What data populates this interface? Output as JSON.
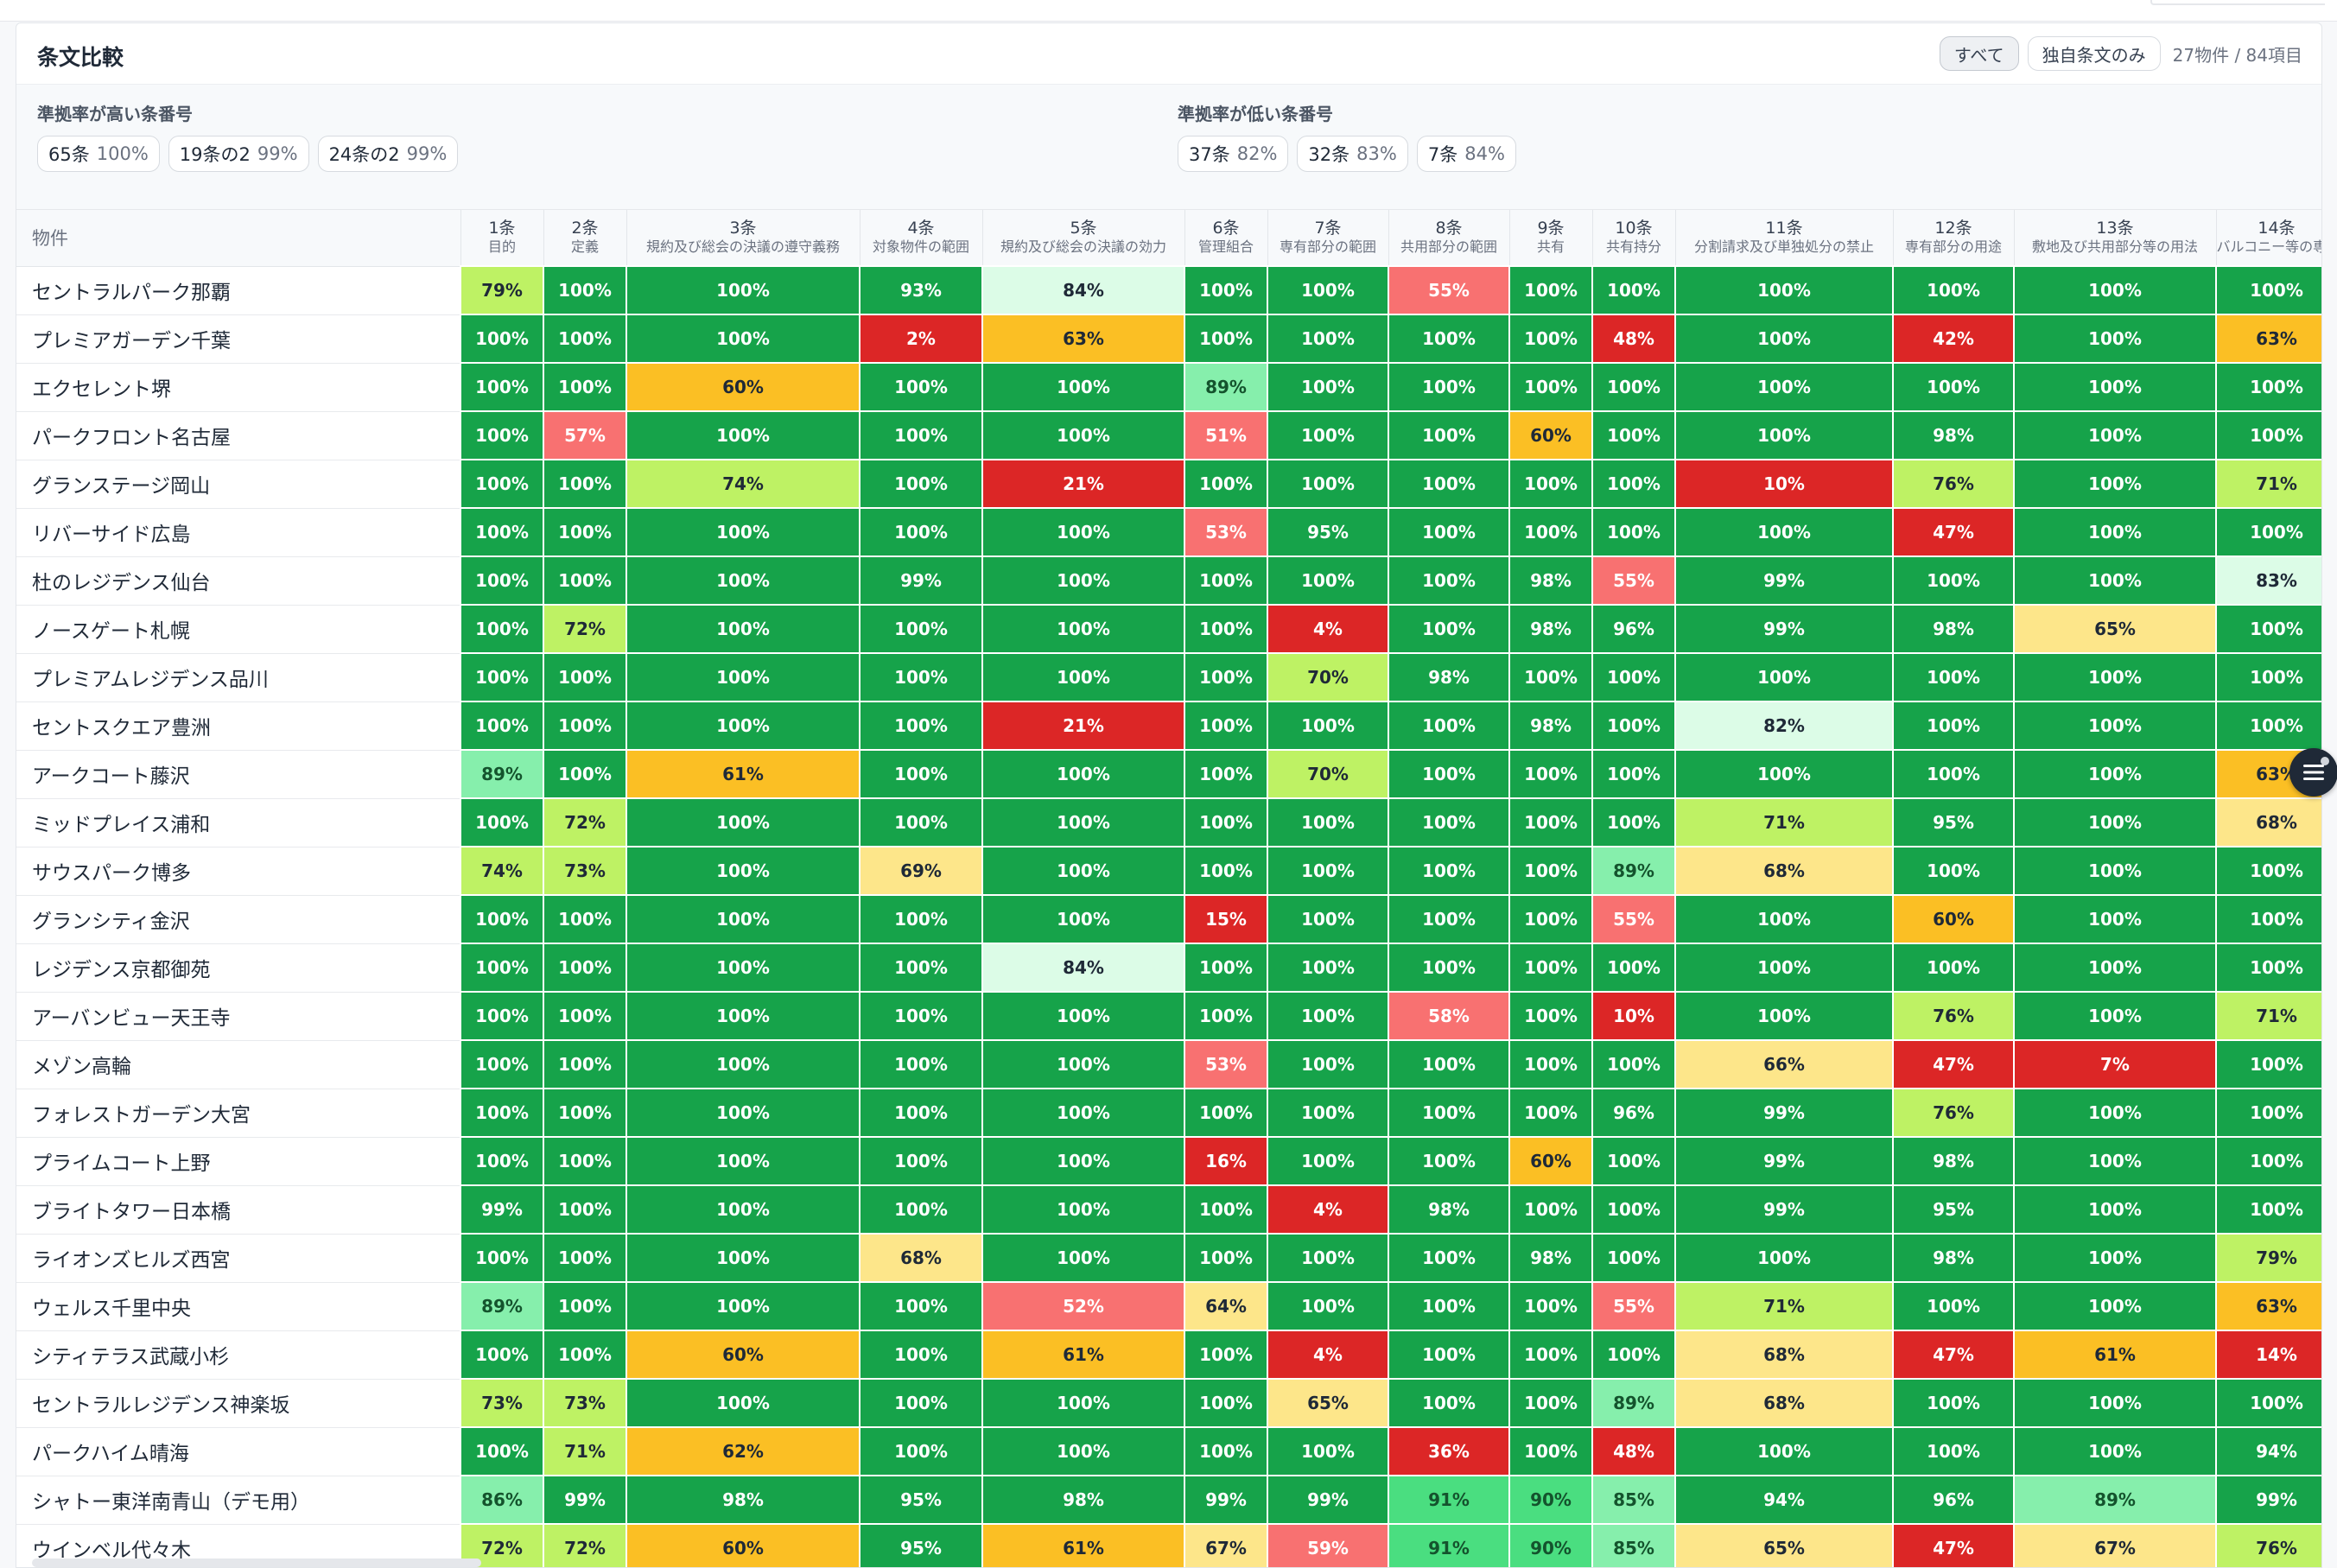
{
  "header": {
    "title": "条文比較",
    "filter_all": "すべて",
    "filter_unique": "独自条文のみ",
    "count": "27物件 / 84項目"
  },
  "summary": {
    "high_label": "準拠率が高い条番号",
    "high": [
      {
        "article": "65条",
        "pct": "100%"
      },
      {
        "article": "19条の2",
        "pct": "99%"
      },
      {
        "article": "24条の2",
        "pct": "99%"
      }
    ],
    "low_label": "準拠率が低い条番号",
    "low": [
      {
        "article": "37条",
        "pct": "82%"
      },
      {
        "article": "32条",
        "pct": "83%"
      },
      {
        "article": "7条",
        "pct": "84%"
      }
    ]
  },
  "table": {
    "property_header": "物件",
    "columns": [
      {
        "num": "1条",
        "title": "目的"
      },
      {
        "num": "2条",
        "title": "定義"
      },
      {
        "num": "3条",
        "title": "規約及び総会の決議の遵守義務"
      },
      {
        "num": "4条",
        "title": "対象物件の範囲"
      },
      {
        "num": "5条",
        "title": "規約及び総会の決議の効力"
      },
      {
        "num": "6条",
        "title": "管理組合"
      },
      {
        "num": "7条",
        "title": "専有部分の範囲"
      },
      {
        "num": "8条",
        "title": "共用部分の範囲"
      },
      {
        "num": "9条",
        "title": "共有"
      },
      {
        "num": "10条",
        "title": "共有持分"
      },
      {
        "num": "11条",
        "title": "分割請求及び単独処分の禁止"
      },
      {
        "num": "12条",
        "title": "専有部分の用途"
      },
      {
        "num": "13条",
        "title": "敷地及び共用部分等の用法"
      },
      {
        "num": "14条",
        "title": "バルコニー等の専用使用権"
      }
    ],
    "rows": [
      {
        "name": "セントラルパーク那覇",
        "values": [
          "79%",
          "100%",
          "100%",
          "93%",
          "84%",
          "100%",
          "100%",
          "55%",
          "100%",
          "100%",
          "100%",
          "100%",
          "100%",
          "100%"
        ]
      },
      {
        "name": "プレミアガーデン千葉",
        "values": [
          "100%",
          "100%",
          "100%",
          "2%",
          "63%",
          "100%",
          "100%",
          "100%",
          "100%",
          "48%",
          "100%",
          "42%",
          "100%",
          "63%"
        ]
      },
      {
        "name": "エクセレント堺",
        "values": [
          "100%",
          "100%",
          "60%",
          "100%",
          "100%",
          "89%",
          "100%",
          "100%",
          "100%",
          "100%",
          "100%",
          "100%",
          "100%",
          "100%"
        ]
      },
      {
        "name": "パークフロント名古屋",
        "values": [
          "100%",
          "57%",
          "100%",
          "100%",
          "100%",
          "51%",
          "100%",
          "100%",
          "60%",
          "100%",
          "100%",
          "98%",
          "100%",
          "100%"
        ]
      },
      {
        "name": "グランステージ岡山",
        "values": [
          "100%",
          "100%",
          "74%",
          "100%",
          "21%",
          "100%",
          "100%",
          "100%",
          "100%",
          "100%",
          "10%",
          "76%",
          "100%",
          "71%"
        ]
      },
      {
        "name": "リバーサイド広島",
        "values": [
          "100%",
          "100%",
          "100%",
          "100%",
          "100%",
          "53%",
          "95%",
          "100%",
          "100%",
          "100%",
          "100%",
          "47%",
          "100%",
          "100%"
        ]
      },
      {
        "name": "杜のレジデンス仙台",
        "values": [
          "100%",
          "100%",
          "100%",
          "99%",
          "100%",
          "100%",
          "100%",
          "100%",
          "98%",
          "55%",
          "99%",
          "100%",
          "100%",
          "83%"
        ]
      },
      {
        "name": "ノースゲート札幌",
        "values": [
          "100%",
          "72%",
          "100%",
          "100%",
          "100%",
          "100%",
          "4%",
          "100%",
          "98%",
          "96%",
          "99%",
          "98%",
          "65%",
          "100%"
        ]
      },
      {
        "name": "プレミアムレジデンス品川",
        "values": [
          "100%",
          "100%",
          "100%",
          "100%",
          "100%",
          "100%",
          "70%",
          "98%",
          "100%",
          "100%",
          "100%",
          "100%",
          "100%",
          "100%"
        ]
      },
      {
        "name": "セントスクエア豊洲",
        "values": [
          "100%",
          "100%",
          "100%",
          "100%",
          "21%",
          "100%",
          "100%",
          "100%",
          "98%",
          "100%",
          "82%",
          "100%",
          "100%",
          "100%"
        ]
      },
      {
        "name": "アークコート藤沢",
        "values": [
          "89%",
          "100%",
          "61%",
          "100%",
          "100%",
          "100%",
          "70%",
          "100%",
          "100%",
          "100%",
          "100%",
          "100%",
          "100%",
          "63%"
        ]
      },
      {
        "name": "ミッドプレイス浦和",
        "values": [
          "100%",
          "72%",
          "100%",
          "100%",
          "100%",
          "100%",
          "100%",
          "100%",
          "100%",
          "100%",
          "71%",
          "95%",
          "100%",
          "68%"
        ]
      },
      {
        "name": "サウスパーク博多",
        "values": [
          "74%",
          "73%",
          "100%",
          "69%",
          "100%",
          "100%",
          "100%",
          "100%",
          "100%",
          "89%",
          "68%",
          "100%",
          "100%",
          "100%"
        ]
      },
      {
        "name": "グランシティ金沢",
        "values": [
          "100%",
          "100%",
          "100%",
          "100%",
          "100%",
          "15%",
          "100%",
          "100%",
          "100%",
          "55%",
          "100%",
          "60%",
          "100%",
          "100%"
        ]
      },
      {
        "name": "レジデンス京都御苑",
        "values": [
          "100%",
          "100%",
          "100%",
          "100%",
          "84%",
          "100%",
          "100%",
          "100%",
          "100%",
          "100%",
          "100%",
          "100%",
          "100%",
          "100%"
        ]
      },
      {
        "name": "アーバンビュー天王寺",
        "values": [
          "100%",
          "100%",
          "100%",
          "100%",
          "100%",
          "100%",
          "100%",
          "58%",
          "100%",
          "10%",
          "100%",
          "76%",
          "100%",
          "71%"
        ]
      },
      {
        "name": "メゾン高輪",
        "values": [
          "100%",
          "100%",
          "100%",
          "100%",
          "100%",
          "53%",
          "100%",
          "100%",
          "100%",
          "100%",
          "66%",
          "47%",
          "7%",
          "100%"
        ]
      },
      {
        "name": "フォレストガーデン大宮",
        "values": [
          "100%",
          "100%",
          "100%",
          "100%",
          "100%",
          "100%",
          "100%",
          "100%",
          "100%",
          "96%",
          "99%",
          "76%",
          "100%",
          "100%"
        ]
      },
      {
        "name": "プライムコート上野",
        "values": [
          "100%",
          "100%",
          "100%",
          "100%",
          "100%",
          "16%",
          "100%",
          "100%",
          "60%",
          "100%",
          "99%",
          "98%",
          "100%",
          "100%"
        ]
      },
      {
        "name": "ブライトタワー日本橋",
        "values": [
          "99%",
          "100%",
          "100%",
          "100%",
          "100%",
          "100%",
          "4%",
          "98%",
          "100%",
          "100%",
          "99%",
          "95%",
          "100%",
          "100%"
        ]
      },
      {
        "name": "ライオンズヒルズ西宮",
        "values": [
          "100%",
          "100%",
          "100%",
          "68%",
          "100%",
          "100%",
          "100%",
          "100%",
          "98%",
          "100%",
          "100%",
          "98%",
          "100%",
          "79%"
        ]
      },
      {
        "name": "ウェルス千里中央",
        "values": [
          "89%",
          "100%",
          "100%",
          "100%",
          "52%",
          "64%",
          "100%",
          "100%",
          "100%",
          "55%",
          "71%",
          "100%",
          "100%",
          "63%"
        ]
      },
      {
        "name": "シティテラス武蔵小杉",
        "values": [
          "100%",
          "100%",
          "60%",
          "100%",
          "61%",
          "100%",
          "4%",
          "100%",
          "100%",
          "100%",
          "68%",
          "47%",
          "61%",
          "14%"
        ]
      },
      {
        "name": "セントラルレジデンス神楽坂",
        "values": [
          "73%",
          "73%",
          "100%",
          "100%",
          "100%",
          "100%",
          "65%",
          "100%",
          "100%",
          "89%",
          "68%",
          "100%",
          "100%",
          "100%"
        ]
      },
      {
        "name": "パークハイム晴海",
        "values": [
          "100%",
          "71%",
          "62%",
          "100%",
          "100%",
          "100%",
          "100%",
          "36%",
          "100%",
          "48%",
          "100%",
          "100%",
          "100%",
          "94%"
        ]
      },
      {
        "name": "シャトー東洋南青山（デモ用）",
        "values": [
          "86%",
          "99%",
          "98%",
          "95%",
          "98%",
          "99%",
          "99%",
          "91%",
          "90%",
          "85%",
          "94%",
          "96%",
          "89%",
          "99%"
        ]
      },
      {
        "name": "ウインベル代々木",
        "values": [
          "72%",
          "72%",
          "60%",
          "95%",
          "61%",
          "67%",
          "59%",
          "91%",
          "90%",
          "85%",
          "65%",
          "47%",
          "67%",
          "76%"
        ]
      }
    ]
  },
  "colors": {
    "deep_green": "#16a34a",
    "green": "#4ade80",
    "light_green": "#86efac",
    "pale_green": "#dcfce7",
    "lime": "#bef264",
    "light_yellow": "#fde68a",
    "amber": "#fbbf24",
    "pink": "#f87171",
    "red": "#dc2626"
  },
  "icons": {
    "floating_menu": "menu-icon"
  }
}
